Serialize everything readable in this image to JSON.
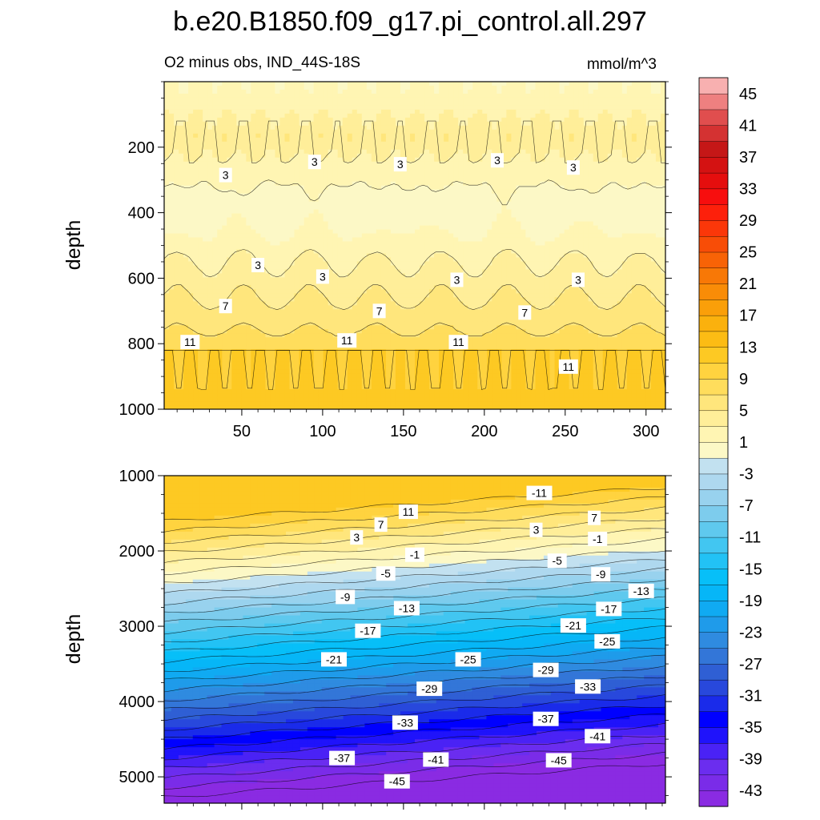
{
  "chart_data": {
    "type": "heatmap",
    "title": "b.e20.B1850.f09_g17.pi_control.all.297",
    "subtitle_left": "O2 minus obs, IND_44S-18S",
    "subtitle_right": "mmol/m^3",
    "x_ticks": [
      "50",
      "100",
      "150",
      "200",
      "250",
      "300"
    ],
    "x_tick_values": [
      50,
      100,
      150,
      200,
      250,
      300
    ],
    "xlim": [
      2,
      312
    ],
    "upper_panel": {
      "ylabel": "depth",
      "ylim": [
        0,
        1000
      ],
      "y_ticks": [
        "200",
        "400",
        "600",
        "800",
        "1000"
      ],
      "y_tick_values": [
        200,
        400,
        600,
        800,
        1000
      ],
      "contour_labels": [
        {
          "text": "3",
          "x": 40,
          "y": 285
        },
        {
          "text": "3",
          "x": 95,
          "y": 245
        },
        {
          "text": "3",
          "x": 148,
          "y": 252
        },
        {
          "text": "3",
          "x": 208,
          "y": 240
        },
        {
          "text": "3",
          "x": 255,
          "y": 262
        },
        {
          "text": "3",
          "x": 60,
          "y": 560
        },
        {
          "text": "3",
          "x": 100,
          "y": 595
        },
        {
          "text": "3",
          "x": 183,
          "y": 605
        },
        {
          "text": "3",
          "x": 258,
          "y": 605
        },
        {
          "text": "7",
          "x": 40,
          "y": 685
        },
        {
          "text": "7",
          "x": 135,
          "y": 700
        },
        {
          "text": "7",
          "x": 225,
          "y": 705
        },
        {
          "text": "11",
          "x": 18,
          "y": 795
        },
        {
          "text": "11",
          "x": 115,
          "y": 790
        },
        {
          "text": "11",
          "x": 184,
          "y": 795
        },
        {
          "text": "11",
          "x": 252,
          "y": 870
        }
      ]
    },
    "lower_panel": {
      "ylabel": "depth",
      "ylim": [
        1000,
        5350
      ],
      "y_ticks": [
        "1000",
        "2000",
        "3000",
        "4000",
        "5000"
      ],
      "y_tick_values": [
        1000,
        2000,
        3000,
        4000,
        5000
      ],
      "contour_labels": [
        {
          "text": "-11",
          "x": 234,
          "y": 1230
        },
        {
          "text": "11",
          "x": 153,
          "y": 1480
        },
        {
          "text": "7",
          "x": 136,
          "y": 1650
        },
        {
          "text": "7",
          "x": 268,
          "y": 1560
        },
        {
          "text": "3",
          "x": 121,
          "y": 1820
        },
        {
          "text": "3",
          "x": 232,
          "y": 1720
        },
        {
          "text": "-1",
          "x": 157,
          "y": 2050
        },
        {
          "text": "-1",
          "x": 270,
          "y": 1840
        },
        {
          "text": "-5",
          "x": 139,
          "y": 2300
        },
        {
          "text": "-5",
          "x": 245,
          "y": 2130
        },
        {
          "text": "-9",
          "x": 114,
          "y": 2610
        },
        {
          "text": "-9",
          "x": 272,
          "y": 2310
        },
        {
          "text": "-13",
          "x": 152,
          "y": 2760
        },
        {
          "text": "-13",
          "x": 297,
          "y": 2530
        },
        {
          "text": "-17",
          "x": 128,
          "y": 3060
        },
        {
          "text": "-17",
          "x": 277,
          "y": 2770
        },
        {
          "text": "-21",
          "x": 107,
          "y": 3440
        },
        {
          "text": "-21",
          "x": 255,
          "y": 2990
        },
        {
          "text": "-25",
          "x": 190,
          "y": 3440
        },
        {
          "text": "-25",
          "x": 276,
          "y": 3200
        },
        {
          "text": "-29",
          "x": 166,
          "y": 3830
        },
        {
          "text": "-29",
          "x": 238,
          "y": 3580
        },
        {
          "text": "-33",
          "x": 151,
          "y": 4280
        },
        {
          "text": "-33",
          "x": 264,
          "y": 3800
        },
        {
          "text": "-37",
          "x": 112,
          "y": 4750
        },
        {
          "text": "-37",
          "x": 238,
          "y": 4230
        },
        {
          "text": "-41",
          "x": 170,
          "y": 4770
        },
        {
          "text": "-41",
          "x": 270,
          "y": 4460
        },
        {
          "text": "-45",
          "x": 146,
          "y": 5060
        },
        {
          "text": "-45",
          "x": 246,
          "y": 4780
        }
      ]
    },
    "colorbar": {
      "levels": [
        -45,
        -43,
        -41,
        -39,
        -37,
        -35,
        -33,
        -31,
        -29,
        -27,
        -25,
        -23,
        -21,
        -19,
        -17,
        -15,
        -13,
        -11,
        -9,
        -7,
        -5,
        -3,
        -1,
        1,
        3,
        5,
        7,
        9,
        11,
        13,
        15,
        17,
        19,
        21,
        23,
        25,
        27,
        29,
        31,
        33,
        35,
        37,
        39,
        41,
        43,
        45
      ],
      "labels": [
        "45",
        "41",
        "37",
        "33",
        "29",
        "25",
        "21",
        "17",
        "13",
        "9",
        "5",
        "1",
        "-3",
        "-7",
        "-11",
        "-15",
        "-19",
        "-23",
        "-27",
        "-31",
        "-35",
        "-39",
        "-43"
      ],
      "colors": [
        "#8a2be2",
        "#7a2ce8",
        "#6b2def",
        "#4a22f5",
        "#1f13fb",
        "#0000ff",
        "#1a2bea",
        "#2848dc",
        "#2f5fd4",
        "#3376d8",
        "#2f8be0",
        "#1f9bea",
        "#10aaf2",
        "#06b6f7",
        "#07bff8",
        "#22c2f5",
        "#42c6f1",
        "#5fc9ee",
        "#7dcced",
        "#98d2ee",
        "#aed8ef",
        "#c2e1f0",
        "#fcf8c6",
        "#fff5b3",
        "#ffee99",
        "#ffe67c",
        "#ffdd5c",
        "#ffd33f",
        "#fdc923",
        "#fcbc14",
        "#fbb10d",
        "#fa9f09",
        "#f98c07",
        "#f87806",
        "#f86306",
        "#f84d07",
        "#fb3709",
        "#fd200b",
        "#f70e0e",
        "#e50e0e",
        "#d41212",
        "#c51717",
        "#d43232",
        "#e04e4e",
        "#ee8080",
        "#f8b0b0"
      ]
    }
  }
}
